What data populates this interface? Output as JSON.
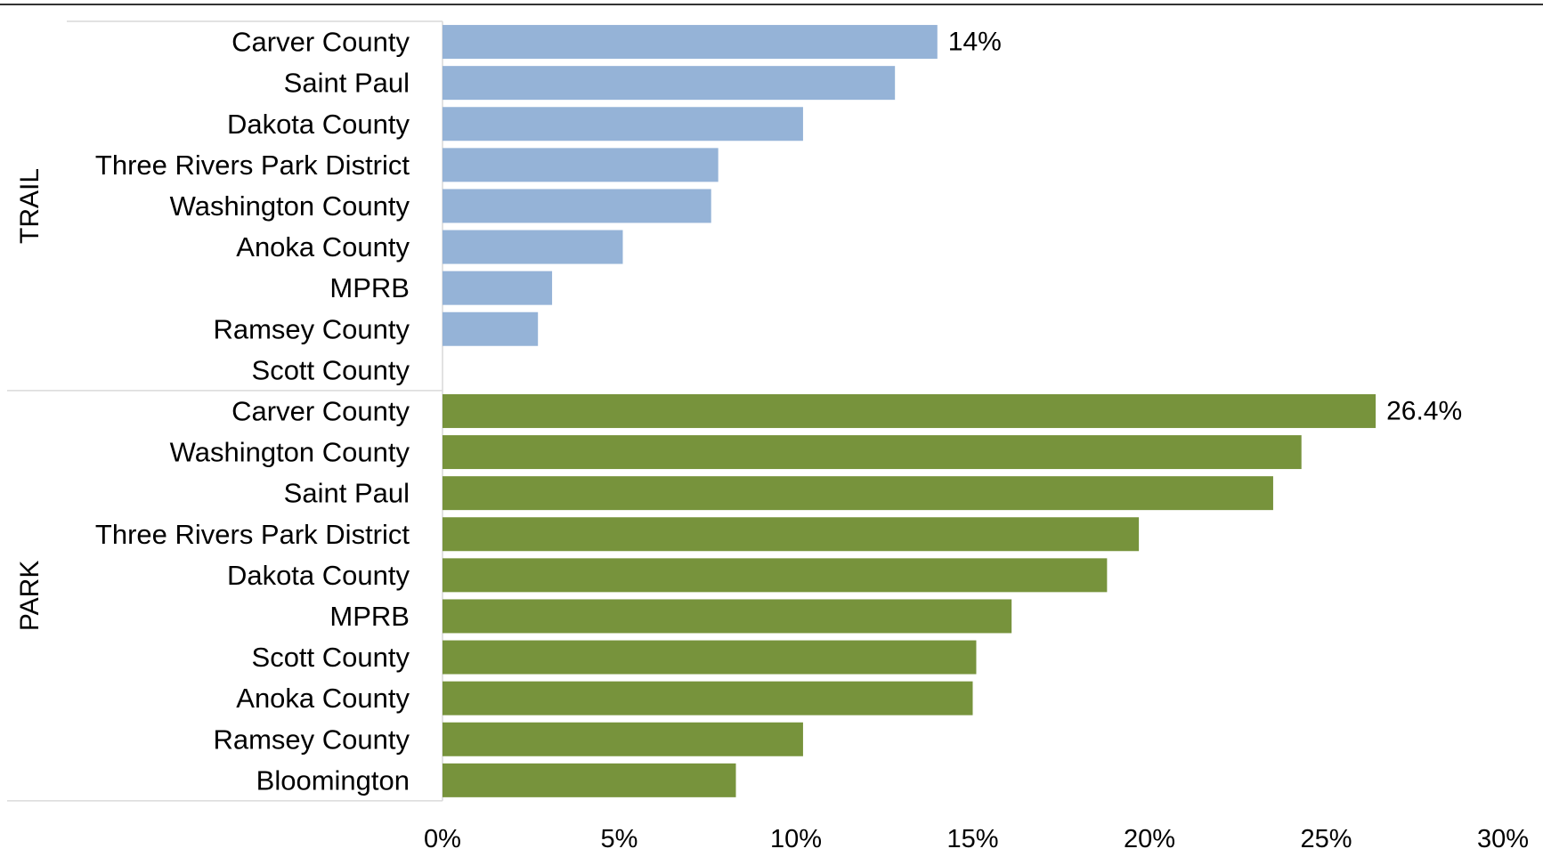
{
  "chart_data": {
    "type": "bar",
    "orientation": "horizontal",
    "xlim": [
      0,
      30
    ],
    "x_ticks": [
      "0%",
      "5%",
      "10%",
      "15%",
      "20%",
      "25%",
      "30%"
    ],
    "grid": false,
    "groups": [
      {
        "name": "TRAIL",
        "color": "#95b3d7",
        "categories": [
          "Carver County",
          "Saint Paul",
          "Dakota County",
          "Three Rivers Park District",
          "Washington County",
          "Anoka County",
          "MPRB",
          "Ramsey County",
          "Scott County"
        ],
        "values": [
          14.0,
          12.8,
          10.2,
          7.8,
          7.6,
          5.1,
          3.1,
          2.7,
          0
        ],
        "data_labels": [
          "14%",
          "",
          "",
          "",
          "",
          "",
          "",
          "",
          ""
        ]
      },
      {
        "name": "PARK",
        "color": "#77933c",
        "categories": [
          "Carver County",
          "Washington County",
          "Saint Paul",
          "Three Rivers Park District",
          "Dakota County",
          "MPRB",
          "Scott County",
          "Anoka County",
          "Ramsey County",
          "Bloomington"
        ],
        "values": [
          26.4,
          24.3,
          23.5,
          19.7,
          18.8,
          16.1,
          15.1,
          15.0,
          10.2,
          8.3
        ],
        "data_labels": [
          "26.4%",
          "",
          "",
          "",
          "",
          "",
          "",
          "",
          "",
          ""
        ]
      }
    ]
  }
}
